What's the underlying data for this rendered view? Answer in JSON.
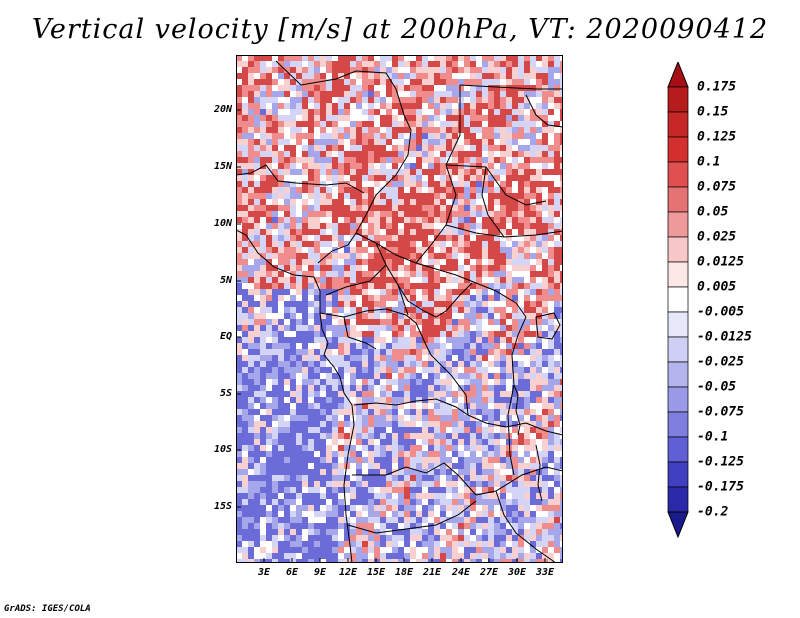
{
  "title": "Vertical velocity [m/s] at 200hPa, VT: 2020090412",
  "credit": "GrADS: IGES/COLA",
  "lat_labels": [
    "20N",
    "15N",
    "10N",
    "5N",
    "EQ",
    "5S",
    "10S",
    "15S"
  ],
  "lon_labels": [
    "3E",
    "6E",
    "9E",
    "12E",
    "15E",
    "18E",
    "21E",
    "24E",
    "27E",
    "30E",
    "33E"
  ],
  "colorbar": {
    "labels": [
      "0.175",
      "0.15",
      "0.125",
      "0.1",
      "0.075",
      "0.05",
      "0.025",
      "0.0125",
      "0.005",
      "-0.005",
      "-0.0125",
      "-0.025",
      "-0.05",
      "-0.075",
      "-0.1",
      "-0.125",
      "-0.175",
      "-0.2"
    ],
    "colors": [
      "#a50f15",
      "#b71c1c",
      "#c62828",
      "#d32f2f",
      "#e05050",
      "#e57373",
      "#ef9a9a",
      "#f8c8c8",
      "#fde8e8",
      "#ffffff",
      "#e8e8fb",
      "#cfcff5",
      "#b4b4ef",
      "#9a9ae8",
      "#7e7edf",
      "#6060d4",
      "#3f3fc0",
      "#2a2aa8",
      "#1a1a8c"
    ]
  },
  "map": {
    "lon_range": [
      0,
      35
    ],
    "lat_range": [
      -20,
      25
    ],
    "field_colors": {
      "strong_pos": "#d44848",
      "pos": "#f08c8c",
      "weak_pos": "#f9d0d0",
      "zero": "#ffffff",
      "weak_neg": "#d4d4f6",
      "neg": "#a6a6ea",
      "strong_neg": "#6c6cd8"
    }
  }
}
